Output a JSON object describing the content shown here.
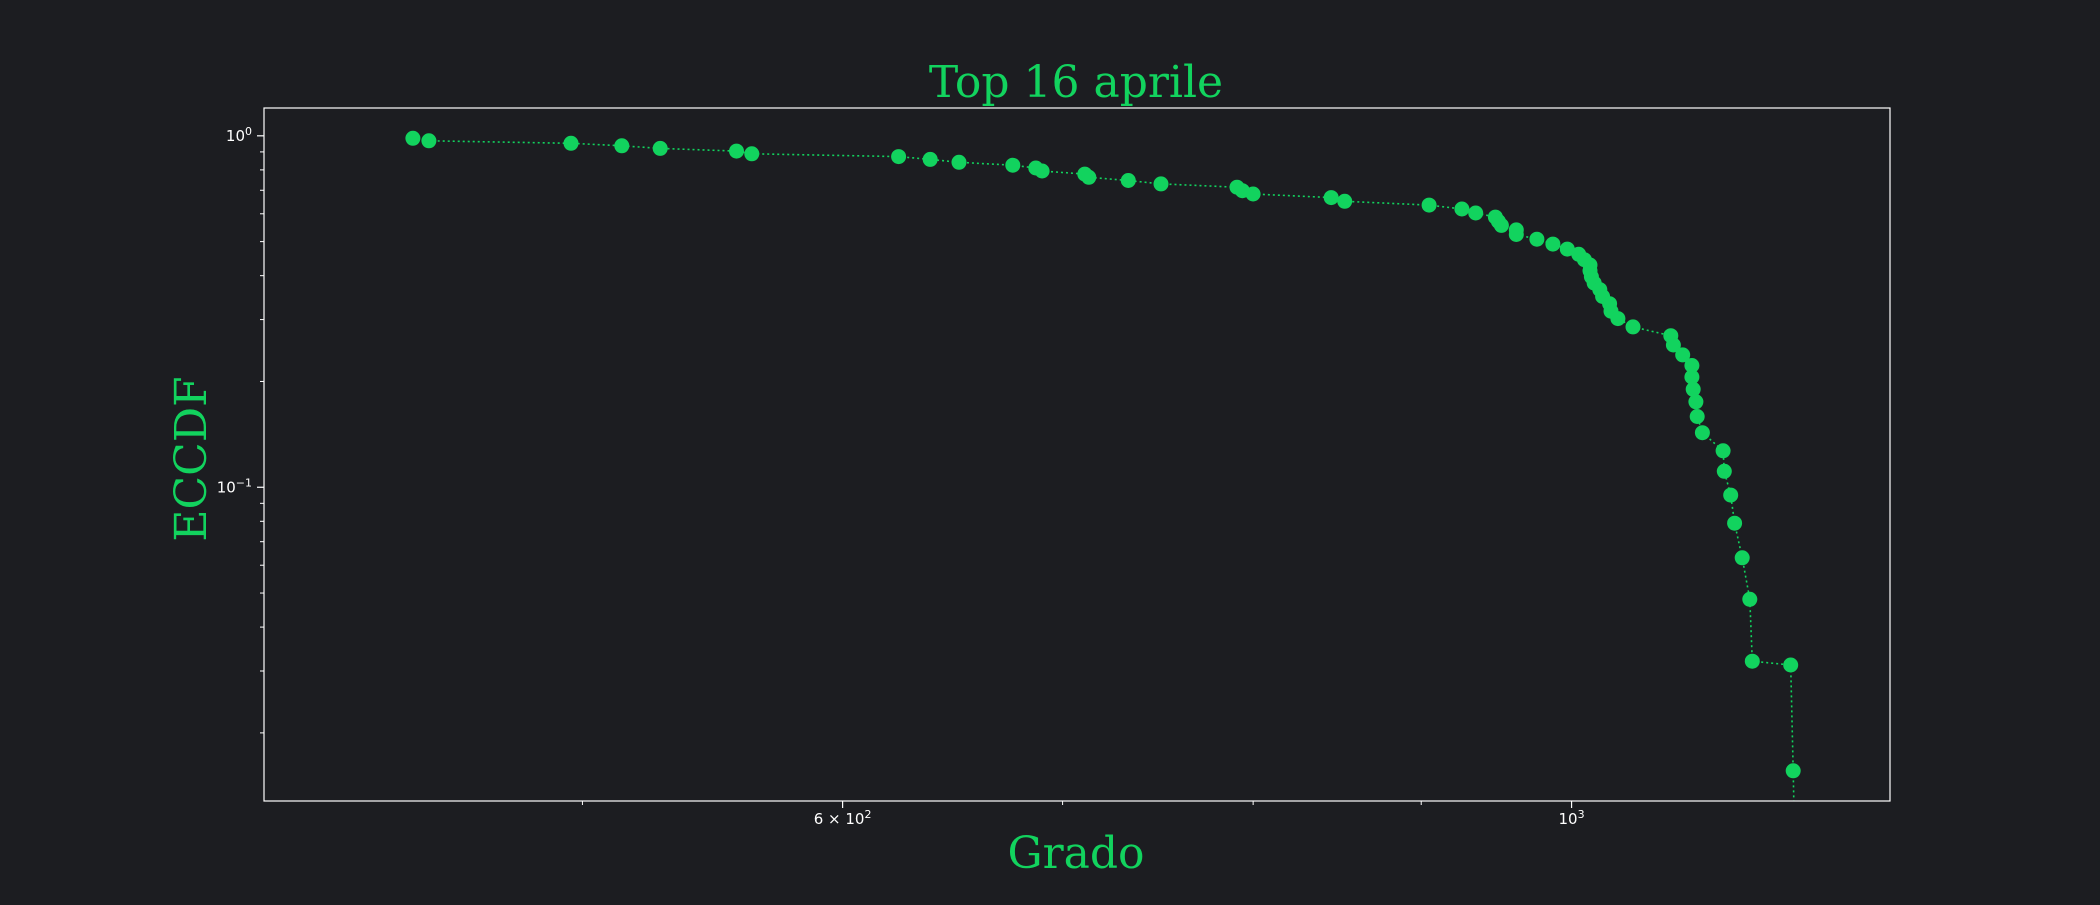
{
  "colors": {
    "background": "#1c1d21",
    "accent": "#12d35e",
    "axes": "#ffffff"
  },
  "chart_data": {
    "type": "scatter",
    "title": "Top 16 aprile",
    "xlabel": "Grado",
    "ylabel": "ECCDF",
    "xscale": "log",
    "yscale": "log",
    "xlim": [
      400,
      1250
    ],
    "ylim": [
      0.0128,
      1.2
    ],
    "grid": false,
    "legend": "none",
    "line_style": "dotted",
    "marker": "circle",
    "x_ticks": [
      {
        "value": 600,
        "label": "6 × 10",
        "exp": "2"
      },
      {
        "value": 1000,
        "label": "10",
        "exp": "3"
      }
    ],
    "x_minor_ticks": [
      500,
      700,
      800,
      900
    ],
    "y_ticks": [
      {
        "value": 1.0,
        "label": "10",
        "exp": "0"
      },
      {
        "value": 0.1,
        "label": "10",
        "exp": "−1"
      }
    ],
    "y_minor_ticks": [
      0.9,
      0.8,
      0.7,
      0.6,
      0.5,
      0.4,
      0.3,
      0.2,
      0.09,
      0.08,
      0.07,
      0.06,
      0.05,
      0.04,
      0.03,
      0.02
    ],
    "series": [
      {
        "x": [
          444,
          449,
          496,
          514,
          528,
          557,
          563,
          624,
          638,
          651,
          676,
          687,
          690,
          711,
          713,
          733,
          750,
          791,
          794,
          800,
          845,
          853,
          905,
          926,
          935,
          948,
          950,
          952,
          962,
          962,
          976,
          987,
          997,
          1005,
          1009,
          1013,
          1013,
          1014,
          1016,
          1020,
          1022,
          1027,
          1028,
          1033,
          1044,
          1072,
          1074,
          1081,
          1088,
          1088,
          1089,
          1091,
          1092,
          1096,
          1112,
          1113,
          1118,
          1121,
          1127,
          1133,
          1135,
          1166,
          1168
        ],
        "y": [
          0.984,
          0.968,
          0.952,
          0.937,
          0.921,
          0.905,
          0.889,
          0.873,
          0.857,
          0.841,
          0.825,
          0.81,
          0.794,
          0.778,
          0.762,
          0.746,
          0.73,
          0.714,
          0.698,
          0.683,
          0.667,
          0.651,
          0.635,
          0.619,
          0.603,
          0.587,
          0.571,
          0.556,
          0.54,
          0.524,
          0.508,
          0.492,
          0.476,
          0.46,
          0.444,
          0.429,
          0.413,
          0.397,
          0.381,
          0.365,
          0.349,
          0.333,
          0.317,
          0.302,
          0.286,
          0.27,
          0.254,
          0.238,
          0.222,
          0.206,
          0.19,
          0.175,
          0.159,
          0.143,
          0.127,
          0.111,
          0.095,
          0.079,
          0.063,
          0.048,
          0.032,
          0.0312,
          0.0156
        ]
      }
    ]
  }
}
